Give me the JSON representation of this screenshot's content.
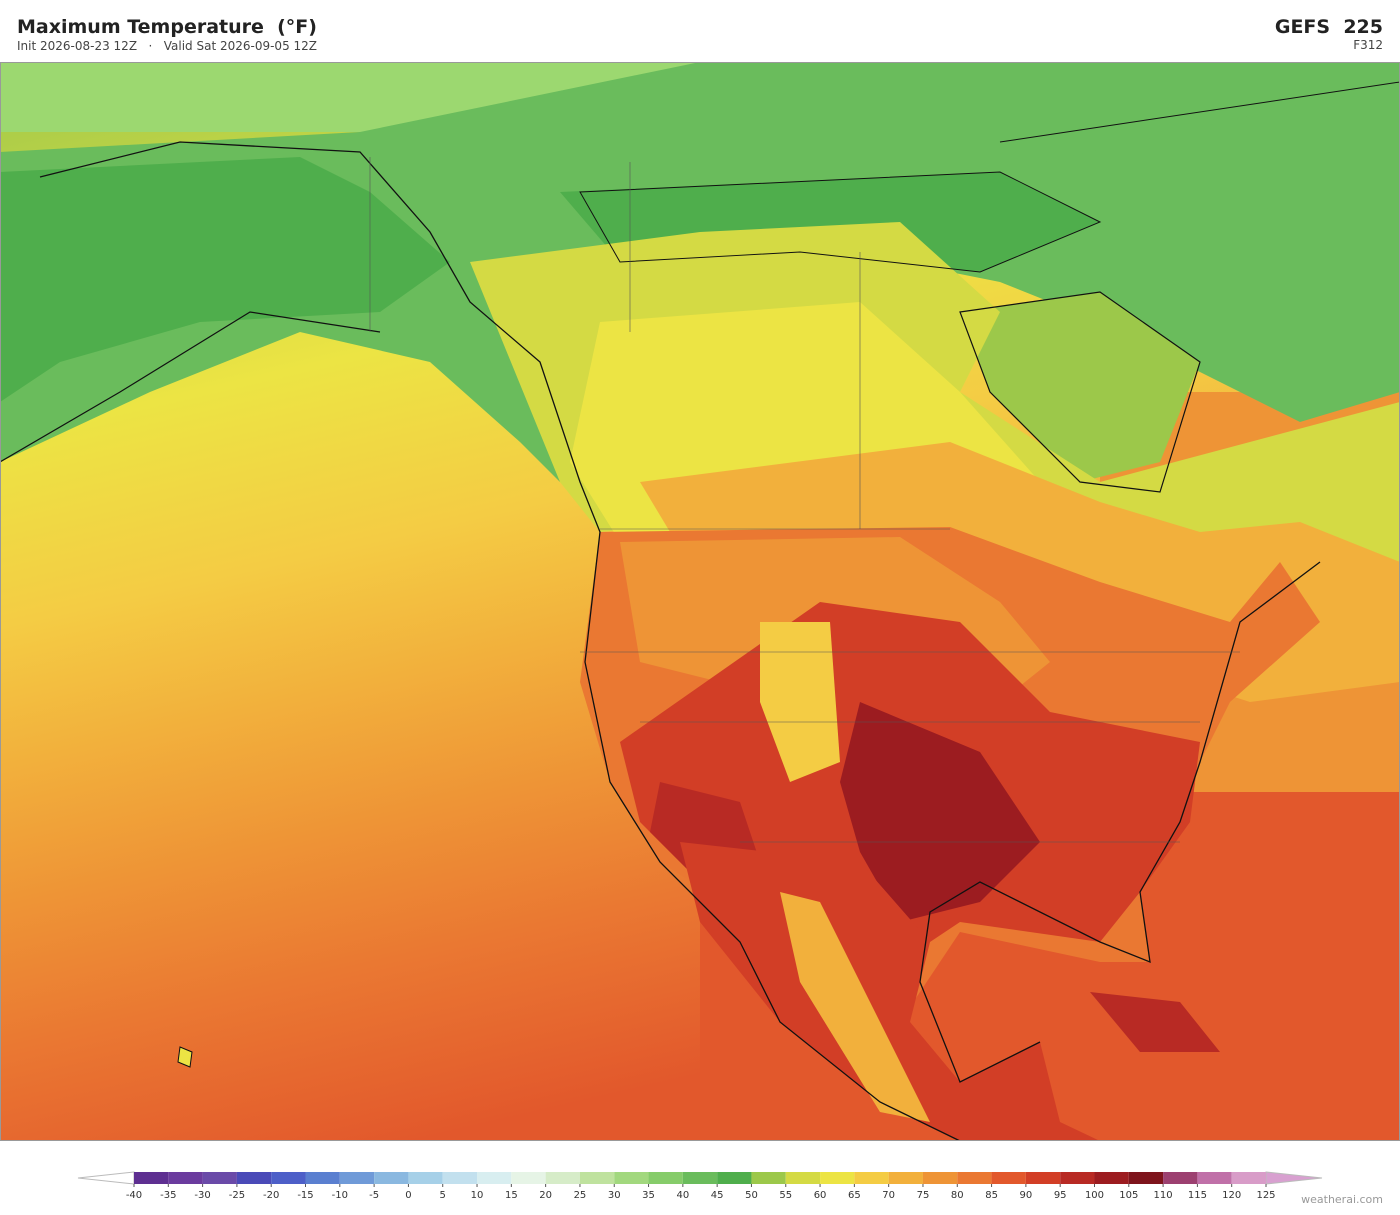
{
  "header": {
    "title": "Maximum Temperature  (°F)",
    "subtitle": "Init 2026-08-23 12Z   ·   Valid Sat 2026-09-05 12Z",
    "model": "GEFS  225",
    "forecast_hour": "F312"
  },
  "colorbar": {
    "ticks": [
      -40,
      -35,
      -30,
      -25,
      -20,
      -15,
      -10,
      -5,
      0,
      5,
      10,
      15,
      20,
      25,
      30,
      35,
      40,
      45,
      50,
      55,
      60,
      65,
      70,
      75,
      80,
      85,
      90,
      95,
      100,
      105,
      110,
      115,
      120,
      125
    ],
    "colors": [
      "#5e2f91",
      "#6b3b9e",
      "#6a4aa8",
      "#4a4ab8",
      "#4d5fc8",
      "#5a7fd0",
      "#6f9ad8",
      "#8ab8e0",
      "#a6d0e8",
      "#c2e0ee",
      "#d8eef0",
      "#e6f4e6",
      "#d6ecc8",
      "#bfe29e",
      "#a2d87e",
      "#86cc6a",
      "#6abc5c",
      "#4fae4c",
      "#9cc84a",
      "#d4da44",
      "#ece444",
      "#f4cc44",
      "#f2b03c",
      "#ee9436",
      "#ea7832",
      "#e2582c",
      "#d23e26",
      "#b82a24",
      "#9c1c20",
      "#7e141c",
      "#9c4070",
      "#c070a8",
      "#d89cc8"
    ],
    "under_color": "#ffffff",
    "over_color": "#d8a0d0"
  },
  "watermark": "weatherai.com"
}
